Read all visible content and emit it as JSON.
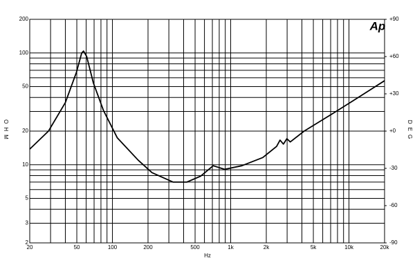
{
  "chart_data": {
    "type": "line",
    "logo": "Ap",
    "ylabel": "OHM",
    "y2label": "DEG",
    "xlabel": "Hz",
    "x_log_scale": true,
    "y_log_scale": true,
    "grid": true,
    "color": "#000000",
    "x": [
      20,
      28.8,
      40,
      49.6,
      55,
      57,
      60.6,
      69,
      84,
      110,
      165,
      216,
      325,
      426,
      557,
      711,
      889,
      1243,
      1868,
      2444,
      2614,
      2790,
      2985,
      3190,
      4180,
      7200,
      12300,
      20000
    ],
    "values": [
      13.8,
      20,
      36,
      67,
      100,
      104,
      93,
      54,
      30.6,
      17.4,
      11,
      8.5,
      7.0,
      7.0,
      7.9,
      9.8,
      9.1,
      9.8,
      11.6,
      14.6,
      16.6,
      15.3,
      17.1,
      16,
      20,
      28.5,
      40.7,
      56.5
    ],
    "xlim": [
      20,
      20000
    ],
    "xticks": [
      20,
      50,
      100,
      200,
      500,
      {
        "value": 1000,
        "label": "1k"
      },
      {
        "value": 2000,
        "label": "2k"
      },
      {
        "value": 5000,
        "label": "5k"
      },
      {
        "value": 10000,
        "label": "10k"
      },
      {
        "value": 20000,
        "label": "20k"
      }
    ],
    "x_minor_ticks": [
      30,
      40,
      60,
      70,
      80,
      90,
      300,
      400,
      600,
      700,
      800,
      900,
      3000,
      4000,
      6000,
      7000,
      8000,
      9000
    ],
    "ylim": [
      2,
      200
    ],
    "yticks": [
      2,
      3,
      5,
      10,
      20,
      50,
      100,
      200
    ],
    "y_minor_ticks": [
      4,
      6,
      7,
      8,
      9,
      30,
      40,
      60,
      70,
      80,
      90
    ],
    "y2lim": [
      -90,
      90
    ],
    "y2ticks": [
      -90,
      -60,
      -30,
      {
        "value": 0,
        "label": "+0"
      },
      {
        "value": 30,
        "label": "+30"
      },
      {
        "value": 60,
        "label": "+60"
      },
      {
        "value": 90,
        "label": "+90"
      }
    ]
  }
}
